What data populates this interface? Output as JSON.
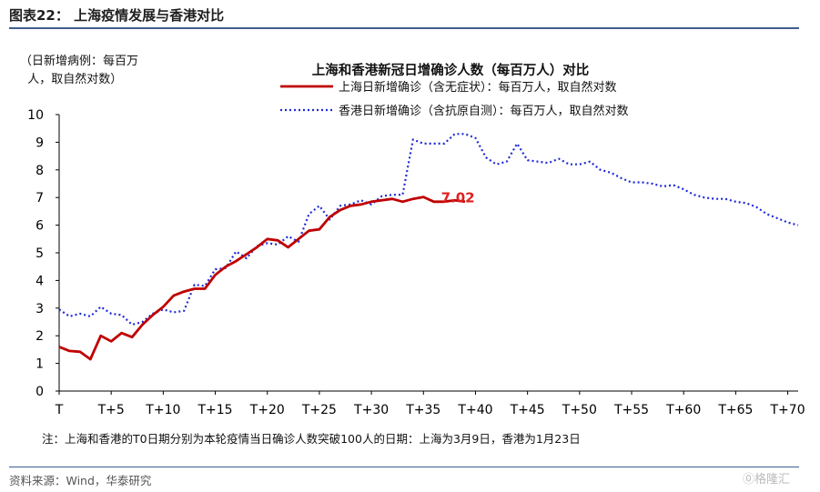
{
  "header": {
    "figure_title": "图表22：  上海疫情发展与香港对比",
    "y_note": "（日新增病例：每百万\n  人，取自然对数）",
    "footnote": "注：上海和香港的T0日期分别为本轮疫情当日确诊人数突破100人的日期：上海为3月9日，香港为1月23日",
    "source": "资料来源：Wind，华泰研究",
    "watermark": "⓪格隆汇"
  },
  "chart_data": {
    "type": "line",
    "title": "上海和香港新冠日增确诊人数（每百万人）对比",
    "ylim": [
      0,
      10
    ],
    "y_ticks": [
      "0",
      "1",
      "2",
      "3",
      "4",
      "5",
      "6",
      "7",
      "8",
      "9",
      "10"
    ],
    "xlim": [
      0,
      71
    ],
    "x_tick_values": [
      0,
      5,
      10,
      15,
      20,
      25,
      30,
      35,
      40,
      45,
      50,
      55,
      60,
      65,
      70
    ],
    "x_tick_labels": [
      "T",
      "T+5",
      "T+10",
      "T+15",
      "T+20",
      "T+25",
      "T+30",
      "T+35",
      "T+40",
      "T+45",
      "T+50",
      "T+55",
      "T+60",
      "T+65",
      "T+70"
    ],
    "legend_position": "top-center",
    "annotation": {
      "text": "7.02",
      "x": 38,
      "y": 7.02,
      "color": "#e02020"
    },
    "series": [
      {
        "name": "上海日新增确诊（含无症状）：每百万人，取自然对数",
        "color": "#c00000",
        "style": "solid",
        "x": [
          0,
          1,
          2,
          3,
          4,
          5,
          6,
          7,
          8,
          9,
          10,
          11,
          12,
          13,
          14,
          15,
          16,
          17,
          18,
          19,
          20,
          21,
          22,
          23,
          24,
          25,
          26,
          27,
          28,
          29,
          30,
          31,
          32,
          33,
          34,
          35,
          36,
          37,
          38,
          39
        ],
        "values": [
          1.6,
          1.45,
          1.42,
          1.15,
          2.0,
          1.8,
          2.1,
          1.95,
          2.4,
          2.75,
          3.05,
          3.45,
          3.6,
          3.7,
          3.7,
          4.2,
          4.5,
          4.7,
          4.95,
          5.2,
          5.5,
          5.45,
          5.2,
          5.5,
          5.8,
          5.85,
          6.3,
          6.55,
          6.7,
          6.75,
          6.85,
          6.9,
          6.95,
          6.85,
          6.95,
          7.02,
          6.85,
          6.85,
          6.9,
          6.85
        ]
      },
      {
        "name": "香港日新增确诊（含抗原自测）：每百万人，取自然对数",
        "color": "#1f2ad8",
        "style": "dotted",
        "x": [
          0,
          1,
          2,
          3,
          4,
          5,
          6,
          7,
          8,
          9,
          10,
          11,
          12,
          13,
          14,
          15,
          16,
          17,
          18,
          19,
          20,
          21,
          22,
          23,
          24,
          25,
          26,
          27,
          28,
          29,
          30,
          31,
          32,
          33,
          34,
          35,
          36,
          37,
          38,
          39,
          40,
          41,
          42,
          43,
          44,
          45,
          46,
          47,
          48,
          49,
          50,
          51,
          52,
          53,
          54,
          55,
          56,
          57,
          58,
          59,
          60,
          61,
          62,
          63,
          64,
          65,
          66,
          67,
          68,
          69,
          70,
          71
        ],
        "values": [
          2.95,
          2.7,
          2.8,
          2.7,
          3.05,
          2.8,
          2.75,
          2.4,
          2.5,
          2.8,
          2.95,
          2.85,
          2.9,
          3.85,
          3.8,
          4.4,
          4.45,
          5.05,
          4.8,
          5.25,
          5.35,
          5.3,
          5.6,
          5.4,
          6.4,
          6.7,
          6.2,
          6.7,
          6.75,
          6.9,
          6.75,
          7.05,
          7.1,
          7.1,
          9.1,
          8.95,
          8.95,
          8.95,
          9.3,
          9.3,
          9.15,
          8.45,
          8.2,
          8.3,
          8.95,
          8.35,
          8.3,
          8.25,
          8.4,
          8.2,
          8.2,
          8.3,
          8.0,
          7.9,
          7.7,
          7.55,
          7.55,
          7.5,
          7.4,
          7.45,
          7.3,
          7.1,
          7.0,
          6.95,
          6.95,
          6.85,
          6.8,
          6.65,
          6.4,
          6.25,
          6.1,
          6.0
        ]
      }
    ]
  }
}
